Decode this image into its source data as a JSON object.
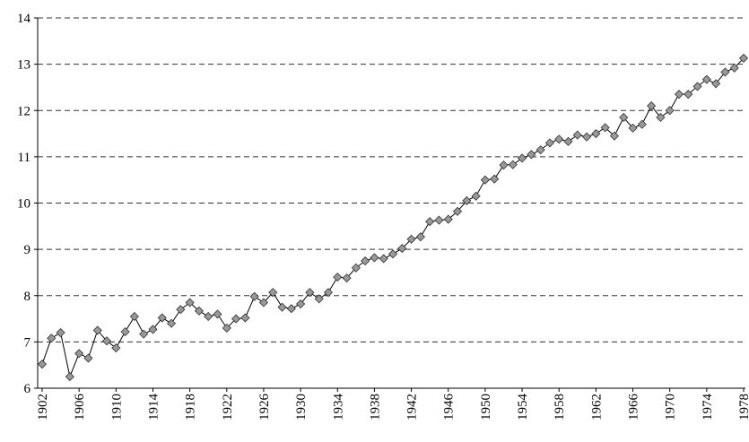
{
  "chart_data": {
    "type": "line",
    "x": [
      1902,
      1903,
      1904,
      1905,
      1906,
      1907,
      1908,
      1909,
      1910,
      1911,
      1912,
      1913,
      1914,
      1915,
      1916,
      1917,
      1918,
      1919,
      1920,
      1921,
      1922,
      1923,
      1924,
      1925,
      1926,
      1927,
      1928,
      1929,
      1930,
      1931,
      1932,
      1933,
      1934,
      1935,
      1936,
      1937,
      1938,
      1939,
      1940,
      1941,
      1942,
      1943,
      1944,
      1945,
      1946,
      1947,
      1948,
      1949,
      1950,
      1951,
      1952,
      1953,
      1954,
      1955,
      1956,
      1957,
      1958,
      1959,
      1960,
      1961,
      1962,
      1963,
      1964,
      1965,
      1966,
      1967,
      1968,
      1969,
      1970,
      1971,
      1972,
      1973,
      1974,
      1975,
      1976,
      1977,
      1978
    ],
    "values": [
      6.52,
      7.08,
      7.2,
      6.25,
      6.75,
      6.65,
      7.25,
      7.02,
      6.87,
      7.22,
      7.55,
      7.17,
      7.27,
      7.52,
      7.4,
      7.7,
      7.85,
      7.67,
      7.55,
      7.6,
      7.3,
      7.5,
      7.52,
      7.98,
      7.85,
      8.07,
      7.75,
      7.72,
      7.82,
      8.07,
      7.93,
      8.07,
      8.4,
      8.38,
      8.6,
      8.75,
      8.82,
      8.8,
      8.9,
      9.02,
      9.22,
      9.27,
      9.6,
      9.63,
      9.65,
      9.82,
      10.05,
      10.15,
      10.5,
      10.52,
      10.82,
      10.83,
      10.97,
      11.05,
      11.15,
      11.3,
      11.38,
      11.33,
      11.47,
      11.43,
      11.5,
      11.63,
      11.45,
      11.85,
      11.62,
      11.7,
      12.1,
      11.85,
      12.0,
      12.35,
      12.35,
      12.52,
      12.67,
      12.58,
      12.83,
      12.92,
      13.13
    ],
    "color": "#999999",
    "xlim": [
      1902,
      1978
    ],
    "xticks": [
      1902,
      1906,
      1910,
      1914,
      1918,
      1922,
      1926,
      1930,
      1934,
      1938,
      1942,
      1946,
      1950,
      1954,
      1958,
      1962,
      1966,
      1970,
      1974,
      1978
    ],
    "ylim": [
      6,
      14
    ],
    "yticks": [
      6,
      7,
      8,
      9,
      10,
      11,
      12,
      13,
      14
    ],
    "grid": true
  }
}
